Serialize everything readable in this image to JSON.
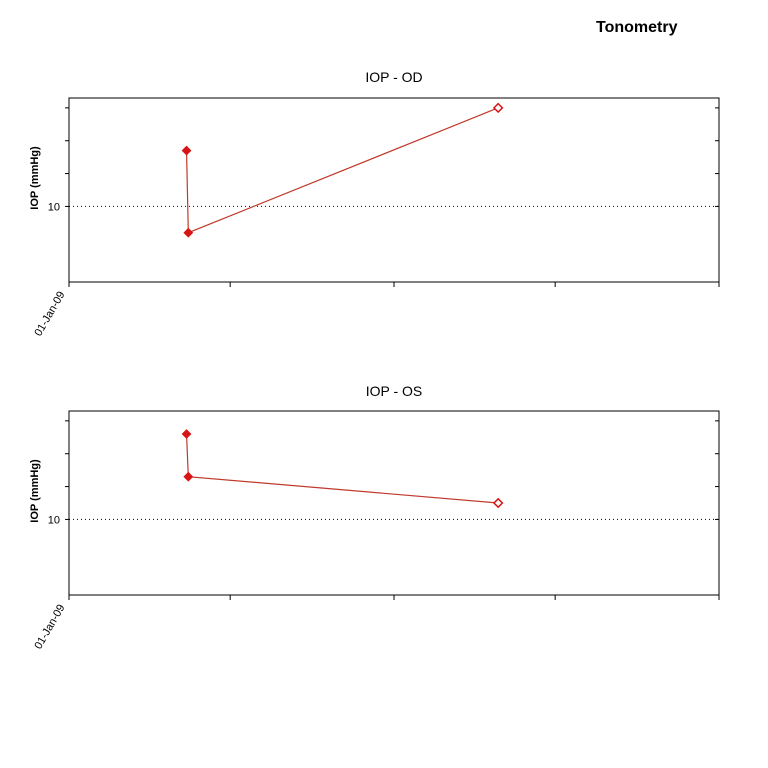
{
  "page": {
    "title": "Tonometry"
  },
  "chart_data": [
    {
      "type": "line",
      "title": "IOP - OD",
      "ylabel": "IOP (mmHg)",
      "xlabel": "",
      "x_tick_labels": [
        "01-Jan-09"
      ],
      "y_tick_labels": [
        "10"
      ],
      "ylim": [
        7.7,
        13.3
      ],
      "reference_line": {
        "y": 10,
        "style": "dotted"
      },
      "grid": false,
      "line_color": "#c0392b",
      "marker_color": "#d91414",
      "series": [
        {
          "points": [
            {
              "x": "2009-05-13",
              "y": 11.7,
              "marker": "filled-diamond"
            },
            {
              "x": "2009-05-15",
              "y": 9.2,
              "marker": "filled-diamond"
            },
            {
              "x": "2010-04-28",
              "y": 13.0,
              "marker": "open-diamond"
            }
          ]
        }
      ]
    },
    {
      "type": "line",
      "title": "IOP - OS",
      "ylabel": "IOP (mmHg)",
      "xlabel": "",
      "x_tick_labels": [
        "01-Jan-09"
      ],
      "y_tick_labels": [
        "10"
      ],
      "ylim": [
        7.7,
        13.3
      ],
      "reference_line": {
        "y": 10,
        "style": "dotted"
      },
      "grid": false,
      "line_color": "#c0392b",
      "marker_color": "#d91414",
      "series": [
        {
          "points": [
            {
              "x": "2009-05-13",
              "y": 12.6,
              "marker": "filled-diamond"
            },
            {
              "x": "2009-05-15",
              "y": 11.3,
              "marker": "filled-diamond"
            },
            {
              "x": "2010-04-28",
              "y": 10.5,
              "marker": "open-diamond"
            }
          ]
        }
      ]
    }
  ]
}
